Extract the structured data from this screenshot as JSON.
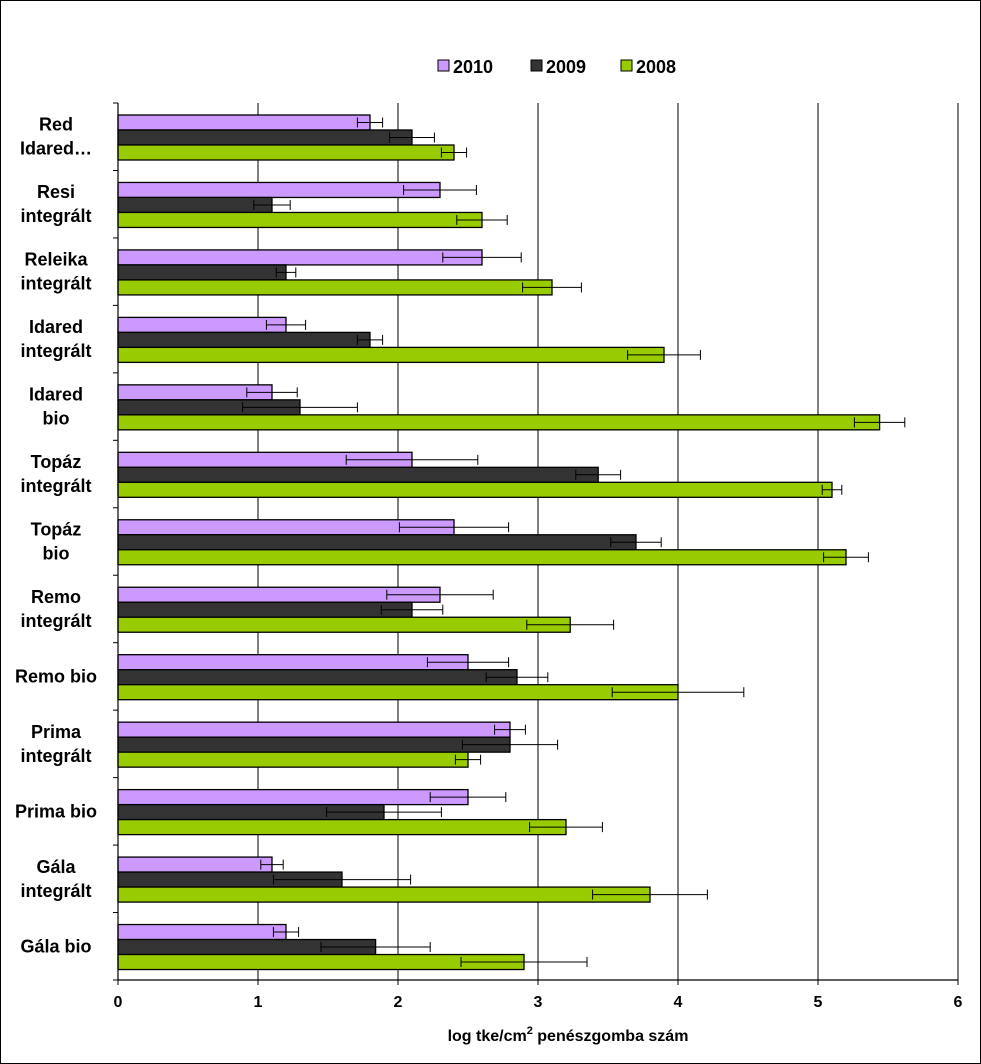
{
  "chart_data": {
    "type": "bar",
    "orientation": "horizontal",
    "xlabel_main": "log tke/cm",
    "xlabel_sup": "2",
    "xlabel_rest": " penészgomba szám",
    "xlim": [
      0,
      6
    ],
    "xticks": [
      0,
      1,
      2,
      3,
      4,
      5,
      6
    ],
    "grid": "vertical major gridlines",
    "legend_position": "top",
    "categories": [
      [
        "Red",
        "Idared…"
      ],
      [
        "Resi",
        "integrált"
      ],
      [
        "Releika",
        "integrált"
      ],
      [
        "Idared",
        "integrált"
      ],
      [
        "Idared",
        "bio"
      ],
      [
        "Topáz",
        "integrált"
      ],
      [
        "Topáz",
        "bio"
      ],
      [
        "Remo",
        "integrált"
      ],
      [
        "Remo bio"
      ],
      [
        "Prima",
        "integrált"
      ],
      [
        "Prima bio"
      ],
      [
        "Gála",
        "integrált"
      ],
      [
        "Gála bio"
      ]
    ],
    "series": [
      {
        "name": "2010",
        "color": "#cc99ff",
        "values": [
          1.8,
          2.3,
          2.6,
          1.2,
          1.1,
          2.1,
          2.4,
          2.3,
          2.5,
          2.8,
          2.5,
          1.1,
          1.2
        ],
        "errors": [
          0.09,
          0.26,
          0.28,
          0.14,
          0.18,
          0.47,
          0.39,
          0.38,
          0.29,
          0.11,
          0.27,
          0.08,
          0.09
        ]
      },
      {
        "name": "2009",
        "color": "#333333",
        "values": [
          2.1,
          1.1,
          1.2,
          1.8,
          1.3,
          3.43,
          3.7,
          2.1,
          2.85,
          2.8,
          1.9,
          1.6,
          1.84
        ],
        "errors": [
          0.16,
          0.13,
          0.07,
          0.09,
          0.41,
          0.16,
          0.18,
          0.22,
          0.22,
          0.34,
          0.41,
          0.49,
          0.39
        ]
      },
      {
        "name": "2008",
        "color": "#99cc00",
        "values": [
          2.4,
          2.6,
          3.1,
          3.9,
          5.44,
          5.1,
          5.2,
          3.23,
          4.0,
          2.5,
          3.2,
          3.8,
          2.9
        ],
        "errors": [
          0.09,
          0.18,
          0.21,
          0.26,
          0.18,
          0.07,
          0.16,
          0.31,
          0.47,
          0.09,
          0.26,
          0.41,
          0.45
        ]
      }
    ]
  }
}
